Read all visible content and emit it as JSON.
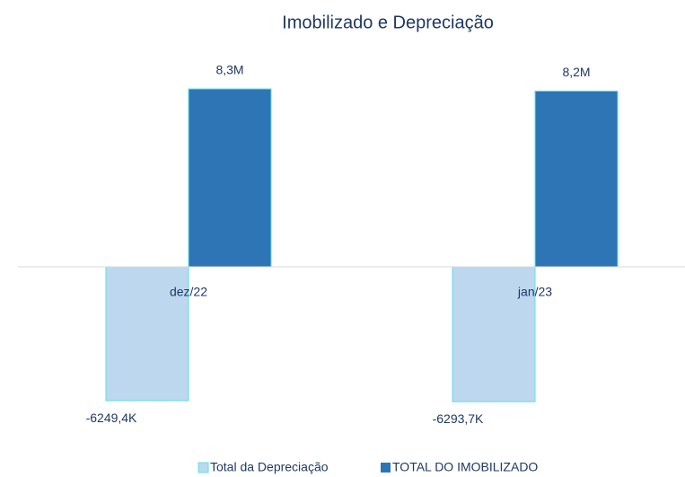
{
  "chart_data": {
    "type": "bar",
    "title": "Imobilizado e Depreciação",
    "categories": [
      "dez/22",
      "jan/23"
    ],
    "series": [
      {
        "name": "Total da Depreciação",
        "color": "#bdd7ee",
        "values": [
          -6249400,
          -6293700
        ],
        "value_labels": [
          "-6249,4K",
          "-6293,7K"
        ]
      },
      {
        "name": "TOTAL DO IMOBILIZADO",
        "color": "#2e75b6",
        "values": [
          8300000,
          8200000
        ],
        "value_labels": [
          "8,3M",
          "8,2M"
        ]
      }
    ],
    "legend": "bottom"
  }
}
